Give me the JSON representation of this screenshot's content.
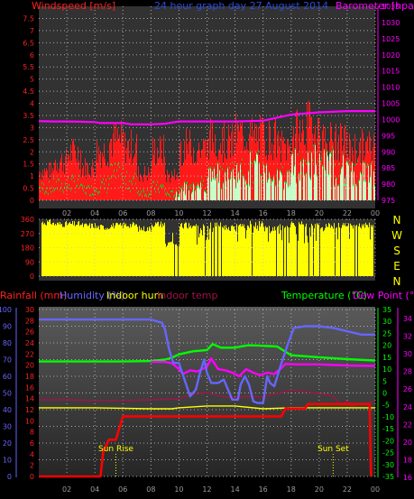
{
  "colors": {
    "background": "#000000",
    "plot_bg": "#323232",
    "grid": "#c8c8c8",
    "windspeed": "#ff1a1a",
    "windspeed_avg": "#1ec81e",
    "windspeed_fill": "#c8ffc8",
    "barometer": "#ff00ff",
    "direction_fill": "#ffff00",
    "rainfall": "#ff0000",
    "humidity": "#6666ff",
    "indoor_hum": "#ffff00",
    "indoor_temp": "#a0144a",
    "temperature": "#00ff00",
    "dew_point": "#ff00ff",
    "title": "#2e4bd8",
    "axis_text": "#ff2020",
    "sun_text": "#ffff00"
  },
  "chart_data": [
    {
      "type": "bar",
      "title": "24 hour graph day 27 August 2014",
      "ylabel_left": "Windspeed [m/s]",
      "ylabel_right": "Barometer [hpa]",
      "ylim_left": [
        0,
        8
      ],
      "ylim_right": [
        975,
        1035
      ],
      "y_ticks_left": [
        "0",
        "0.5",
        "1",
        "1.5",
        "2",
        "2.5",
        "3",
        "3.5",
        "4",
        "4.5",
        "5",
        "5.5",
        "6",
        "6.5",
        "7",
        "7.5"
      ],
      "y_ticks_right": [
        "975",
        "980",
        "985",
        "990",
        "995",
        "1000",
        "1005",
        "1010",
        "1015",
        "1020",
        "1025",
        "1030",
        "1035"
      ],
      "x_ticks": [
        "02",
        "04",
        "06",
        "08",
        "10",
        "12",
        "14",
        "16",
        "18",
        "20",
        "22",
        "00"
      ],
      "series": [
        {
          "name": "Barometer",
          "points": [
            [
              0,
              999.5
            ],
            [
              1,
              999.4
            ],
            [
              2,
              999.4
            ],
            [
              3,
              999.3
            ],
            [
              4,
              999.2
            ],
            [
              4.4,
              998.9
            ],
            [
              5,
              998.9
            ],
            [
              6,
              998.9
            ],
            [
              6.6,
              998.5
            ],
            [
              8,
              998.5
            ],
            [
              9,
              998.7
            ],
            [
              10,
              999.4
            ],
            [
              12,
              999.4
            ],
            [
              14,
              999.4
            ],
            [
              16,
              999.6
            ],
            [
              18,
              1001.5
            ],
            [
              20,
              1002.2
            ],
            [
              22,
              1002.6
            ],
            [
              24,
              1002.6
            ]
          ]
        },
        {
          "name": "Windspeed max",
          "hourly": [
            1.4,
            1.9,
            2.3,
            1.6,
            2.4,
            2.9,
            2.6,
            1.3,
            2.4,
            1.2,
            2.6,
            2.5,
            3.0,
            2.8,
            3.2,
            3.1,
            3.0,
            2.6,
            3.3,
            3.6,
            2.9,
            2.8,
            2.5,
            2.6
          ]
        },
        {
          "name": "Windspeed avg",
          "hourly": [
            0.6,
            0.7,
            0.8,
            0.5,
            0.7,
            1.2,
            0.9,
            0.4,
            0.6,
            0.3,
            0.6,
            0.8,
            1.2,
            1.3,
            1.3,
            1.6,
            1.3,
            1.1,
            1.7,
            1.9,
            1.7,
            1.5,
            1.3,
            1.3
          ]
        }
      ]
    },
    {
      "type": "bar",
      "ylabel_right": [
        "N",
        "W",
        "S",
        "E",
        "N"
      ],
      "ylim": [
        0,
        360
      ],
      "y_ticks_left": [
        "0",
        "90",
        "180",
        "270",
        "360"
      ],
      "x_ticks": [
        "02",
        "04",
        "06",
        "08",
        "10",
        "12",
        "14",
        "16",
        "18",
        "20",
        "22",
        "00"
      ],
      "series": [
        {
          "name": "Wind direction",
          "hourly": [
            340,
            330,
            330,
            320,
            310,
            320,
            325,
            300,
            330,
            200,
            320,
            310,
            320,
            305,
            320,
            330,
            300,
            310,
            330,
            320,
            320,
            320,
            320,
            325
          ]
        }
      ]
    },
    {
      "type": "line",
      "labels": {
        "rainfall": "Rainfall (mm)",
        "humidity": "Humidity (%)",
        "indoor_hum": "Indoor hum",
        "indoor_temp": "Indoor temp",
        "temperature": "Temperature (°C)",
        "dew_point": "Dew Point (°C)"
      },
      "ylim_humidity": [
        0,
        100
      ],
      "ylim_rain": [
        0,
        30
      ],
      "ylim_temperature": [
        -35,
        35
      ],
      "ylim_indoor": [
        16,
        34
      ],
      "y_ticks_humidity": [
        "0",
        "10",
        "20",
        "30",
        "40",
        "50",
        "60",
        "70",
        "80",
        "90",
        "100"
      ],
      "y_ticks_rain": [
        "0",
        "2",
        "4",
        "6",
        "8",
        "10",
        "12",
        "14",
        "16",
        "18",
        "20",
        "22",
        "24",
        "26",
        "28",
        "30"
      ],
      "y_ticks_temperature": [
        "35",
        "30",
        "25",
        "20",
        "15",
        "10",
        "5",
        "0",
        "-5",
        "-10",
        "-15",
        "-20",
        "-25",
        "-30",
        "-35"
      ],
      "y_ticks_indoor": [
        "34",
        "32",
        "30",
        "28",
        "26",
        "24",
        "22",
        "20",
        "18",
        "16"
      ],
      "x_ticks": [
        "02",
        "04",
        "06",
        "08",
        "10",
        "12",
        "14",
        "16",
        "18",
        "20",
        "22",
        "00"
      ],
      "annotations": [
        {
          "text": "Sun Rise",
          "x": 5.5
        },
        {
          "text": "Sun Set",
          "x": 21.0
        }
      ],
      "series": [
        {
          "name": "Rainfall",
          "points": [
            [
              0,
              0
            ],
            [
              4.4,
              0
            ],
            [
              4.6,
              4.5
            ],
            [
              5.0,
              6.6
            ],
            [
              5.5,
              6.6
            ],
            [
              6.0,
              10.8
            ],
            [
              10,
              10.8
            ],
            [
              12,
              10.8
            ],
            [
              14,
              10.8
            ],
            [
              16,
              10.8
            ],
            [
              17.3,
              10.8
            ],
            [
              17.6,
              12.2
            ],
            [
              19,
              12.2
            ],
            [
              19.2,
              13.0
            ],
            [
              23.6,
              13.0
            ],
            [
              23.7,
              0
            ]
          ]
        },
        {
          "name": "Humidity",
          "points": [
            [
              0,
              94
            ],
            [
              2,
              94
            ],
            [
              4,
              94
            ],
            [
              6,
              94
            ],
            [
              8,
              94
            ],
            [
              8.8,
              92
            ],
            [
              9.0,
              88
            ],
            [
              9.3,
              76
            ],
            [
              9.6,
              68
            ],
            [
              10,
              68
            ],
            [
              10.4,
              58
            ],
            [
              10.8,
              48
            ],
            [
              11.2,
              52
            ],
            [
              11.5,
              62
            ],
            [
              11.8,
              70
            ],
            [
              12.0,
              62
            ],
            [
              12.3,
              56
            ],
            [
              12.8,
              56
            ],
            [
              13.2,
              58
            ],
            [
              13.5,
              52
            ],
            [
              13.8,
              46
            ],
            [
              14.2,
              46
            ],
            [
              14.4,
              55
            ],
            [
              14.7,
              60
            ],
            [
              15.0,
              55
            ],
            [
              15.3,
              45
            ],
            [
              15.6,
              44
            ],
            [
              16.0,
              44
            ],
            [
              16.3,
              60
            ],
            [
              16.5,
              56
            ],
            [
              16.8,
              54
            ],
            [
              17.2,
              65
            ],
            [
              17.8,
              80
            ],
            [
              18.2,
              89
            ],
            [
              19,
              90
            ],
            [
              20,
              90
            ],
            [
              21,
              89
            ],
            [
              22,
              87
            ],
            [
              23,
              85
            ],
            [
              24,
              85
            ]
          ]
        },
        {
          "name": "Temperature",
          "points": [
            [
              0,
              13.2
            ],
            [
              2,
              13.2
            ],
            [
              4,
              13.2
            ],
            [
              6,
              13.2
            ],
            [
              8,
              13.4
            ],
            [
              9,
              14.0
            ],
            [
              9.5,
              14.8
            ],
            [
              10,
              16.2
            ],
            [
              11,
              17.5
            ],
            [
              12,
              18.0
            ],
            [
              12.4,
              20.5
            ],
            [
              13,
              19.0
            ],
            [
              14,
              19.0
            ],
            [
              14.5,
              19.6
            ],
            [
              15,
              20.0
            ],
            [
              16,
              19.8
            ],
            [
              17,
              19.5
            ],
            [
              18,
              15.8
            ],
            [
              20,
              15.0
            ],
            [
              22,
              14.2
            ],
            [
              24,
              13.6
            ]
          ]
        },
        {
          "name": "Dew Point",
          "points": [
            [
              8,
              13.0
            ],
            [
              9,
              13.0
            ],
            [
              9.5,
              12.5
            ],
            [
              10,
              10.0
            ],
            [
              10.3,
              8.0
            ],
            [
              10.8,
              9.5
            ],
            [
              11.3,
              9.0
            ],
            [
              12,
              11.0
            ],
            [
              12.3,
              14.5
            ],
            [
              12.8,
              10.0
            ],
            [
              13.3,
              9.5
            ],
            [
              13.8,
              8.5
            ],
            [
              14.3,
              7.0
            ],
            [
              14.8,
              10.0
            ],
            [
              15.3,
              8.5
            ],
            [
              15.8,
              7.5
            ],
            [
              16.3,
              8.5
            ],
            [
              16.8,
              8.0
            ],
            [
              17.3,
              10.5
            ],
            [
              17.6,
              12.2
            ],
            [
              18.5,
              12.0
            ],
            [
              20,
              12.0
            ],
            [
              22,
              11.5
            ],
            [
              24,
              11.3
            ]
          ]
        },
        {
          "name": "Indoor temp",
          "points": [
            [
              0,
              24.8
            ],
            [
              2,
              24.8
            ],
            [
              4,
              24.7
            ],
            [
              6,
              24.7
            ],
            [
              8,
              24.8
            ],
            [
              10,
              24.9
            ],
            [
              11,
              25.4
            ],
            [
              12,
              25.6
            ],
            [
              13,
              25.2
            ],
            [
              14,
              25.0
            ],
            [
              15,
              25.2
            ],
            [
              16,
              25.1
            ],
            [
              17,
              25.5
            ],
            [
              18,
              25.9
            ],
            [
              19,
              25.7
            ],
            [
              20,
              25.5
            ],
            [
              21,
              25.2
            ],
            [
              21.5,
              24.3
            ],
            [
              22,
              24.6
            ],
            [
              22.3,
              24.1
            ],
            [
              24,
              24.6
            ]
          ]
        },
        {
          "name": "Indoor hum",
          "points": [
            [
              0,
              37
            ],
            [
              4,
              37
            ],
            [
              8,
              36.5
            ],
            [
              9.5,
              36.5
            ],
            [
              10,
              37
            ],
            [
              12,
              38
            ],
            [
              14,
              38
            ],
            [
              16,
              36.5
            ],
            [
              18,
              37
            ],
            [
              20,
              37
            ],
            [
              22,
              37
            ],
            [
              24,
              37
            ]
          ]
        }
      ]
    }
  ]
}
